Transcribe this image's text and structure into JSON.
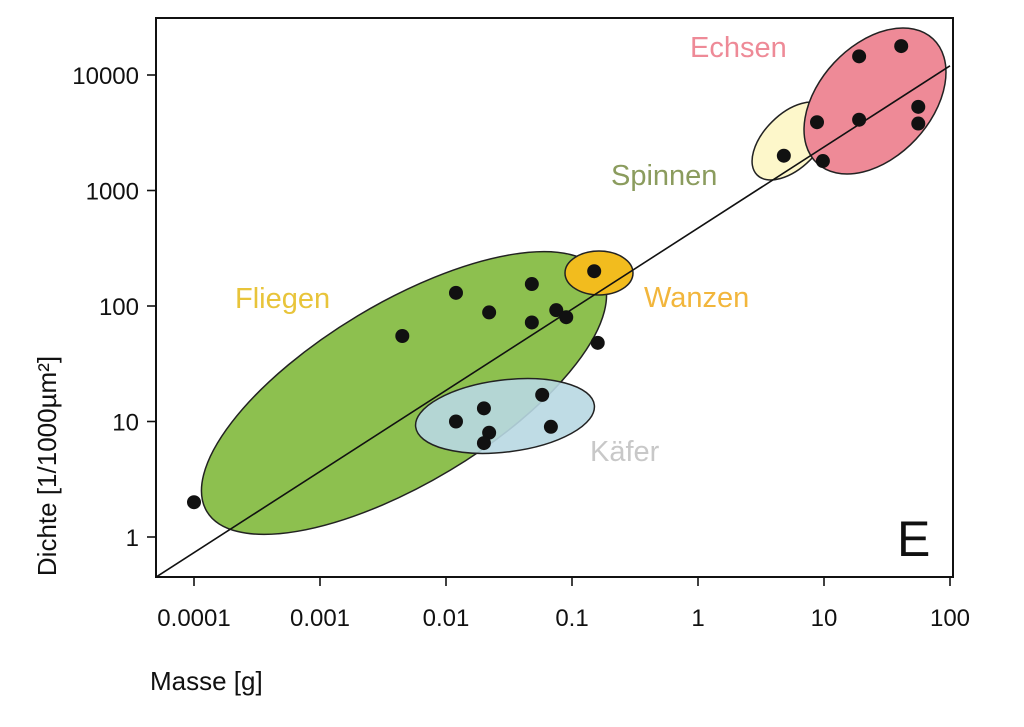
{
  "chart_data": {
    "type": "scatter",
    "title": "",
    "xlabel": "Masse [g]",
    "ylabel": "Dichte [1/1000µm²]",
    "xscale": "log",
    "yscale": "log",
    "xlim": [
      5e-05,
      110
    ],
    "ylim": [
      0.45,
      30000
    ],
    "x_ticks": [
      0.0001,
      0.001,
      0.01,
      0.1,
      1,
      10,
      100
    ],
    "x_tick_labels": [
      "0.0001",
      "0.001",
      "0.01",
      "0.1",
      "1",
      "10",
      "100"
    ],
    "y_ticks": [
      1,
      10,
      100,
      1000,
      10000
    ],
    "y_tick_labels": [
      "1",
      "10",
      "100",
      "1000",
      "10000"
    ],
    "grid": false,
    "legend": "none",
    "panel_label": "E",
    "fit_line": {
      "from": [
        5e-05,
        0.45
      ],
      "to": [
        100,
        12000
      ]
    },
    "groups": [
      {
        "name": "Fliegen",
        "fill": "#8dc04f",
        "label_color": "#e8c43a"
      },
      {
        "name": "Käfer",
        "fill": "#b8d8e2",
        "label_color": "#c8c8c8"
      },
      {
        "name": "Wanzen",
        "fill": "#f2bc1e",
        "label_color": "#f2b63c"
      },
      {
        "name": "Spinnen",
        "fill": "#fdf6c4",
        "label_color": "#8b9c5e"
      },
      {
        "name": "Echsen",
        "fill": "#ee8a97",
        "label_color": "#ee8a97"
      }
    ],
    "points": [
      {
        "x": 0.0001,
        "y": 2
      },
      {
        "x": 0.0045,
        "y": 55
      },
      {
        "x": 0.012,
        "y": 130
      },
      {
        "x": 0.022,
        "y": 88
      },
      {
        "x": 0.048,
        "y": 155
      },
      {
        "x": 0.048,
        "y": 72
      },
      {
        "x": 0.075,
        "y": 92
      },
      {
        "x": 0.09,
        "y": 80
      },
      {
        "x": 0.16,
        "y": 48
      },
      {
        "x": 0.15,
        "y": 200
      },
      {
        "x": 0.012,
        "y": 10
      },
      {
        "x": 0.02,
        "y": 13
      },
      {
        "x": 0.022,
        "y": 8
      },
      {
        "x": 0.02,
        "y": 6.5
      },
      {
        "x": 0.058,
        "y": 17
      },
      {
        "x": 0.068,
        "y": 9
      },
      {
        "x": 4.8,
        "y": 2000
      },
      {
        "x": 8.8,
        "y": 3900
      },
      {
        "x": 9.8,
        "y": 1800
      },
      {
        "x": 19,
        "y": 4100
      },
      {
        "x": 19,
        "y": 14500
      },
      {
        "x": 41,
        "y": 17800
      },
      {
        "x": 56,
        "y": 5300
      },
      {
        "x": 56,
        "y": 3800
      }
    ]
  }
}
